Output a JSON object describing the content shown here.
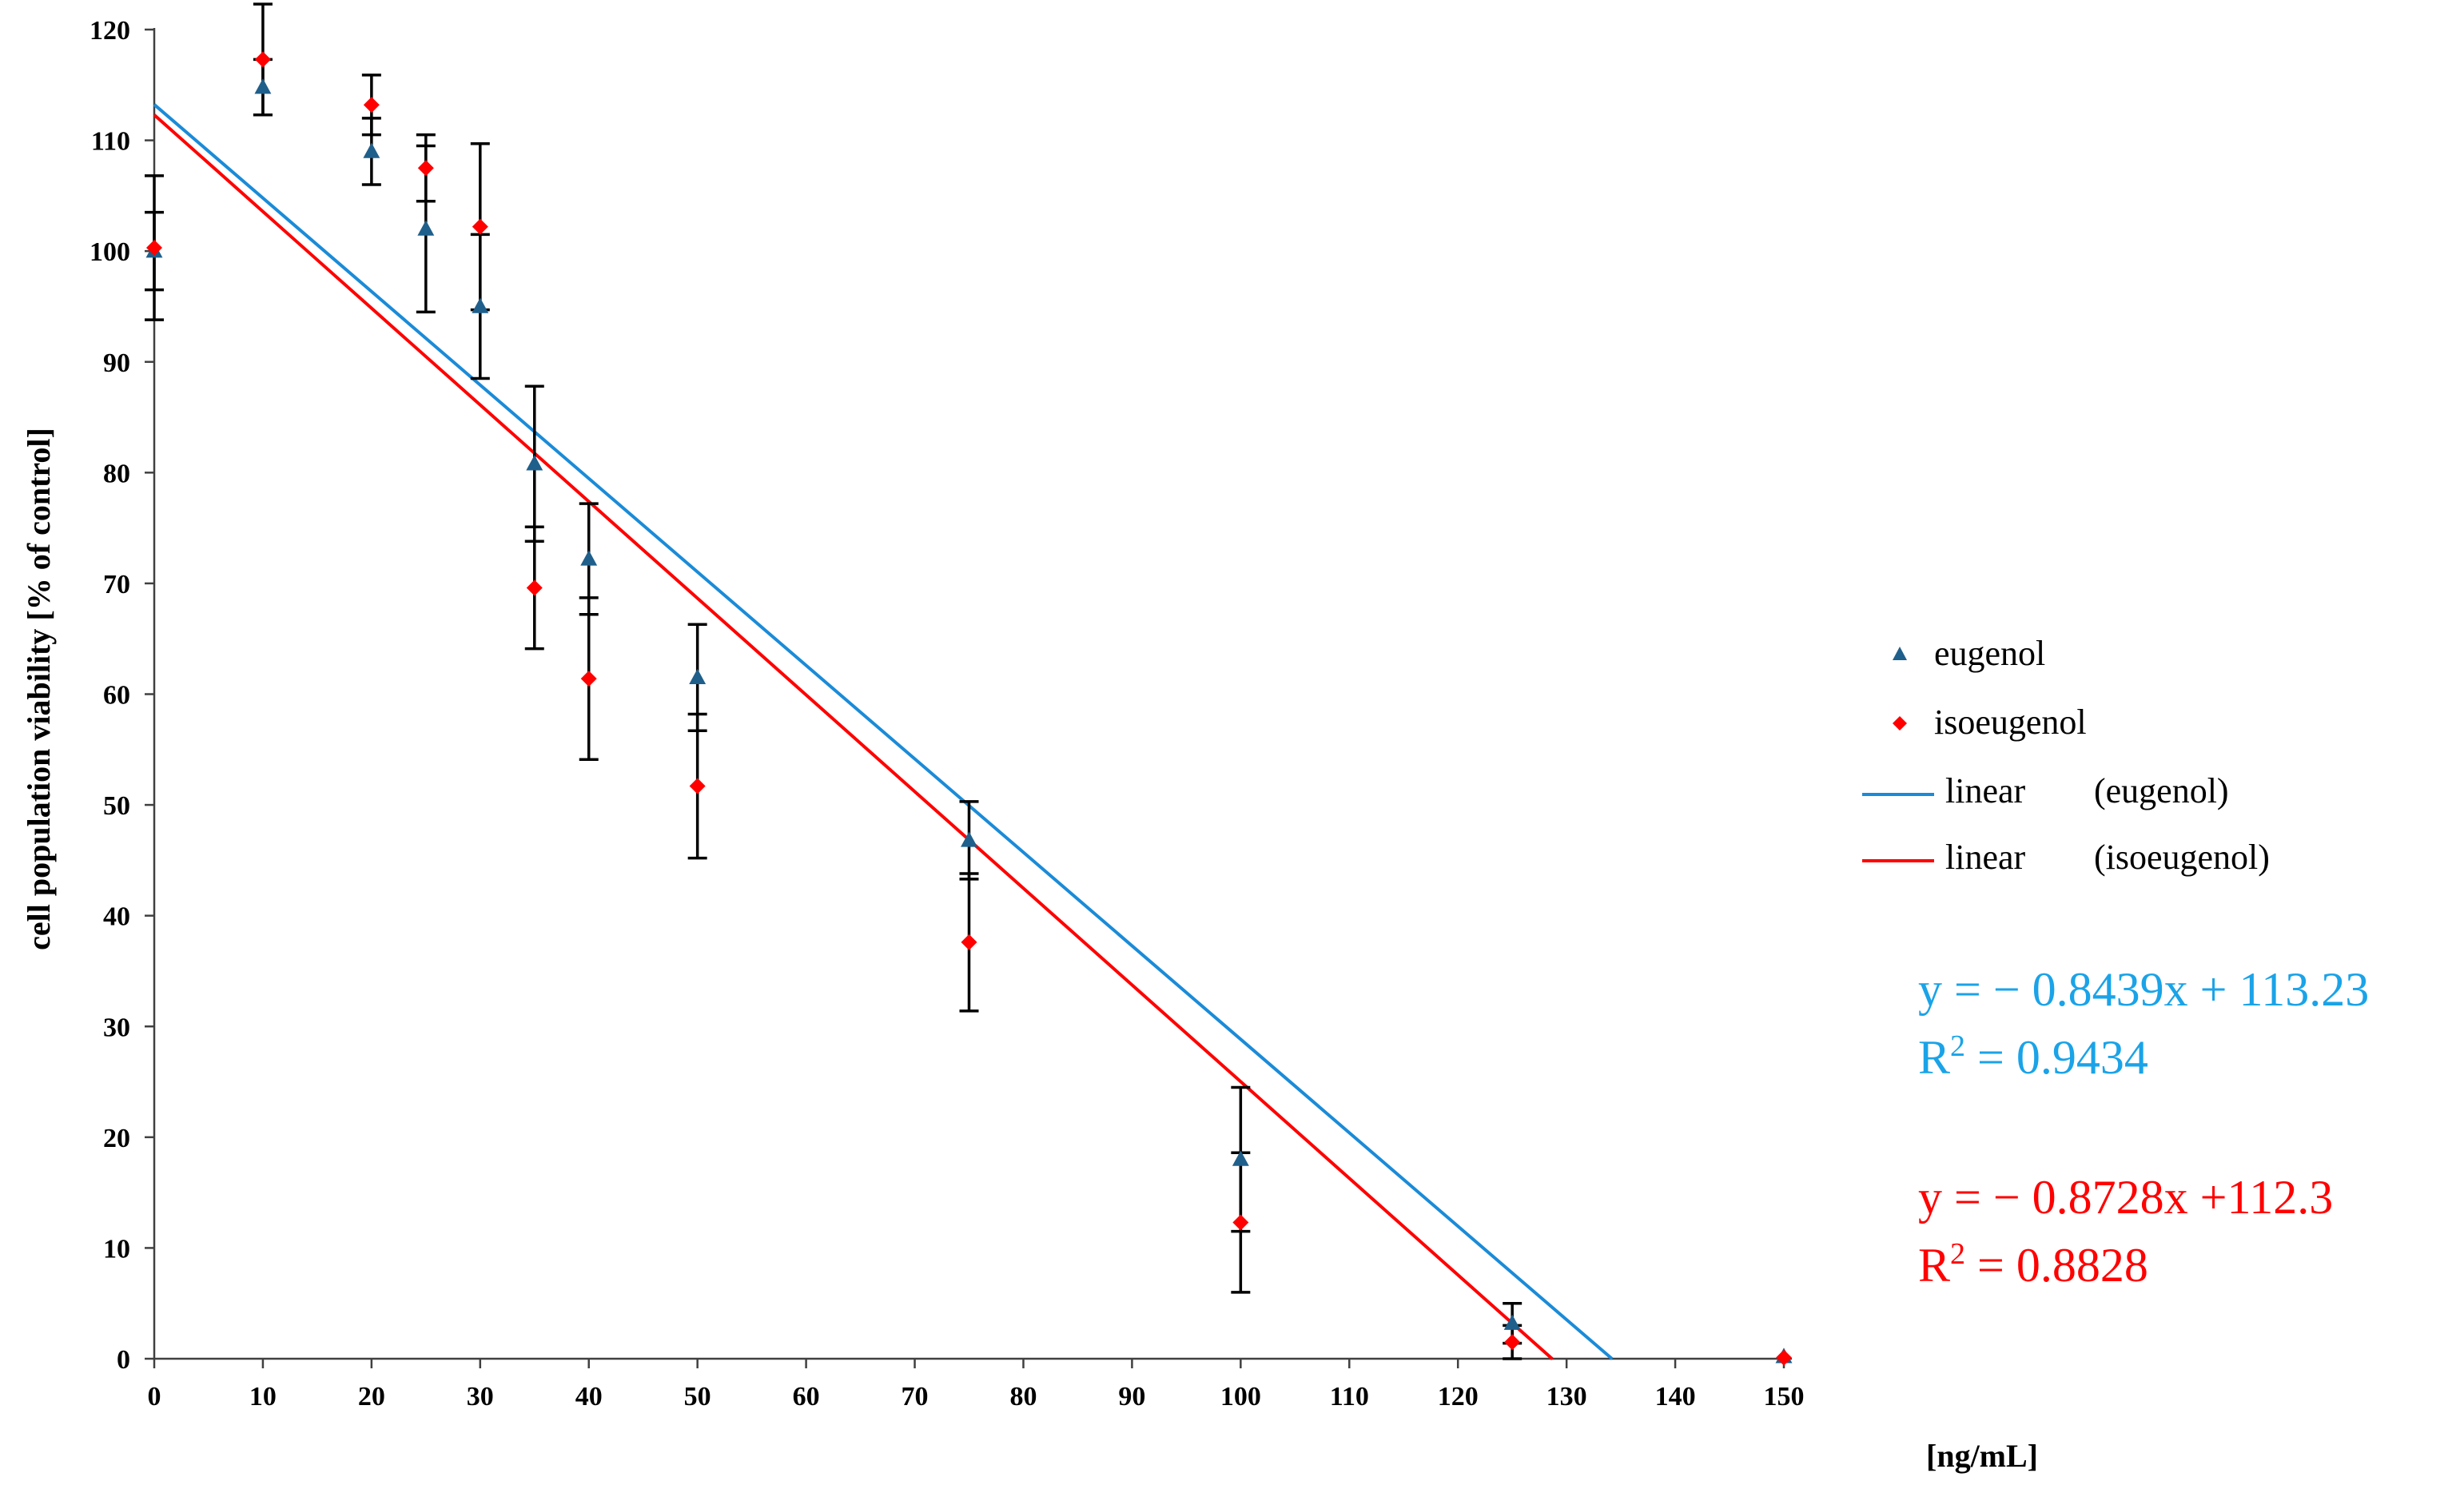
{
  "chart_data": {
    "type": "scatter",
    "title": "",
    "xlabel": "[ng/mL]",
    "ylabel": "cell population viability [% of control]",
    "xlim": [
      0,
      150
    ],
    "ylim": [
      0,
      120
    ],
    "x_ticks": [
      "0",
      "10",
      "20",
      "30",
      "40",
      "50",
      "60",
      "70",
      "80",
      "90",
      "100",
      "110",
      "120",
      "130",
      "140",
      "150"
    ],
    "y_ticks": [
      "0",
      "10",
      "20",
      "30",
      "40",
      "50",
      "60",
      "70",
      "80",
      "90",
      "100",
      "110",
      "120"
    ],
    "grid": false,
    "legend_position": "right",
    "series": [
      {
        "name": "eugenol",
        "color": "#1f5f8b",
        "marker": "triangle",
        "points": [
          {
            "x": 0,
            "y": 100.0,
            "err": 3.5
          },
          {
            "x": 10,
            "y": 114.8,
            "err": 2.5
          },
          {
            "x": 20,
            "y": 109.0,
            "err": 3.0
          },
          {
            "x": 25,
            "y": 102.0,
            "err": 7.5
          },
          {
            "x": 30,
            "y": 95.0,
            "err": 6.5
          },
          {
            "x": 35,
            "y": 80.8,
            "err": 7.0
          },
          {
            "x": 40,
            "y": 72.2,
            "err": 5.0
          },
          {
            "x": 50,
            "y": 61.5,
            "err": 4.8
          },
          {
            "x": 75,
            "y": 46.8,
            "err": 3.5
          },
          {
            "x": 100,
            "y": 18.0,
            "err": 6.5
          },
          {
            "x": 125,
            "y": 3.2,
            "err": 1.8
          },
          {
            "x": 150,
            "y": 0.2,
            "err": 0
          }
        ]
      },
      {
        "name": "isoeugenol",
        "color": "#ff0000",
        "marker": "diamond",
        "points": [
          {
            "x": 0,
            "y": 100.3,
            "err": 6.5
          },
          {
            "x": 10,
            "y": 117.3,
            "err": 5.0
          },
          {
            "x": 20,
            "y": 113.2,
            "err": 2.7
          },
          {
            "x": 25,
            "y": 107.5,
            "err": 3.0
          },
          {
            "x": 30,
            "y": 102.2,
            "err": 7.5
          },
          {
            "x": 35,
            "y": 69.6,
            "err": 5.5
          },
          {
            "x": 40,
            "y": 61.4,
            "err": 7.3
          },
          {
            "x": 50,
            "y": 51.7,
            "err": 6.5
          },
          {
            "x": 75,
            "y": 37.6,
            "err": 6.2
          },
          {
            "x": 100,
            "y": 12.3,
            "err": 6.3
          },
          {
            "x": 125,
            "y": 1.5,
            "err": 1.5
          },
          {
            "x": 150,
            "y": 0.1,
            "err": 0
          }
        ]
      }
    ],
    "trendlines": [
      {
        "name": "linear",
        "series_label": "(eugenol)",
        "color": "#1a8bd8",
        "slope": -0.8439,
        "intercept": 113.23,
        "x_range": [
          0,
          134.2
        ]
      },
      {
        "name": "linear",
        "series_label": "(isoeugenol)",
        "color": "#ff0000",
        "slope": -0.8728,
        "intercept": 112.3,
        "x_range": [
          0,
          128.7
        ]
      }
    ],
    "annotations": {
      "eugenol_eq": "y = − 0.8439x + 113.23",
      "eugenol_r2_prefix": "R",
      "eugenol_r2_sup": "2",
      "eugenol_r2_value": " = 0.9434",
      "eugenol_color": "#1aa3e8",
      "isoeugenol_eq": "y = − 0.8728x +112.3",
      "isoeugenol_r2_prefix": "R",
      "isoeugenol_r2_sup": "2",
      "isoeugenol_r2_value": " = 0.8828",
      "isoeugenol_color": "#ff0000"
    }
  },
  "legend": {
    "items": [
      {
        "label": "eugenol",
        "series_label": ""
      },
      {
        "label": "isoeugenol",
        "series_label": ""
      },
      {
        "label": "linear",
        "series_label": "(eugenol)"
      },
      {
        "label": "linear",
        "series_label": "(isoeugenol)"
      }
    ]
  }
}
